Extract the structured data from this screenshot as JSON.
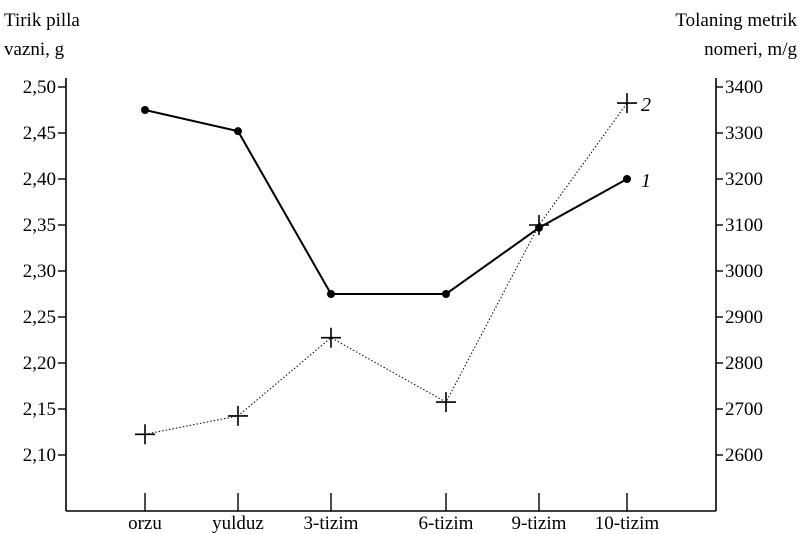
{
  "chart_data": {
    "type": "line",
    "categories": [
      "orzu",
      "yulduz",
      "3-tizim",
      "6-tizim",
      "9-tizim",
      "10-tizim"
    ],
    "left_axis": {
      "title_lines": [
        "Tirik pilla",
        "vazni, g"
      ],
      "ylim": [
        2.05,
        2.5
      ],
      "ticks": [
        2.1,
        2.15,
        2.2,
        2.25,
        2.3,
        2.35,
        2.4,
        2.45,
        2.5
      ],
      "tick_labels": [
        "2,10",
        "2,15",
        "2,20",
        "2,25",
        "2,30",
        "2,35",
        "2,40",
        "2,45",
        "2,50"
      ]
    },
    "right_axis": {
      "title_lines": [
        "Tolaning metrik",
        "nomeri, m/g"
      ],
      "ylim": [
        2500,
        3400
      ],
      "ticks": [
        2600,
        2700,
        2800,
        2900,
        3000,
        3100,
        3200,
        3300,
        3400
      ],
      "tick_labels": [
        "2600",
        "2700",
        "2800",
        "2900",
        "3000",
        "3100",
        "3200",
        "3300",
        "3400"
      ]
    },
    "series": [
      {
        "name": "1",
        "axis": "left",
        "style": "solid",
        "marker": "dot",
        "values": [
          2.475,
          2.452,
          2.275,
          2.275,
          2.347,
          2.4
        ]
      },
      {
        "name": "2",
        "axis": "right",
        "style": "dotted",
        "marker": "plus",
        "values": [
          2645,
          2685,
          2855,
          2715,
          3100,
          3365
        ]
      }
    ],
    "grid": false,
    "legend": "inline labels at series ends",
    "colors": {
      "line": "#000000",
      "background": "#ffffff"
    }
  }
}
